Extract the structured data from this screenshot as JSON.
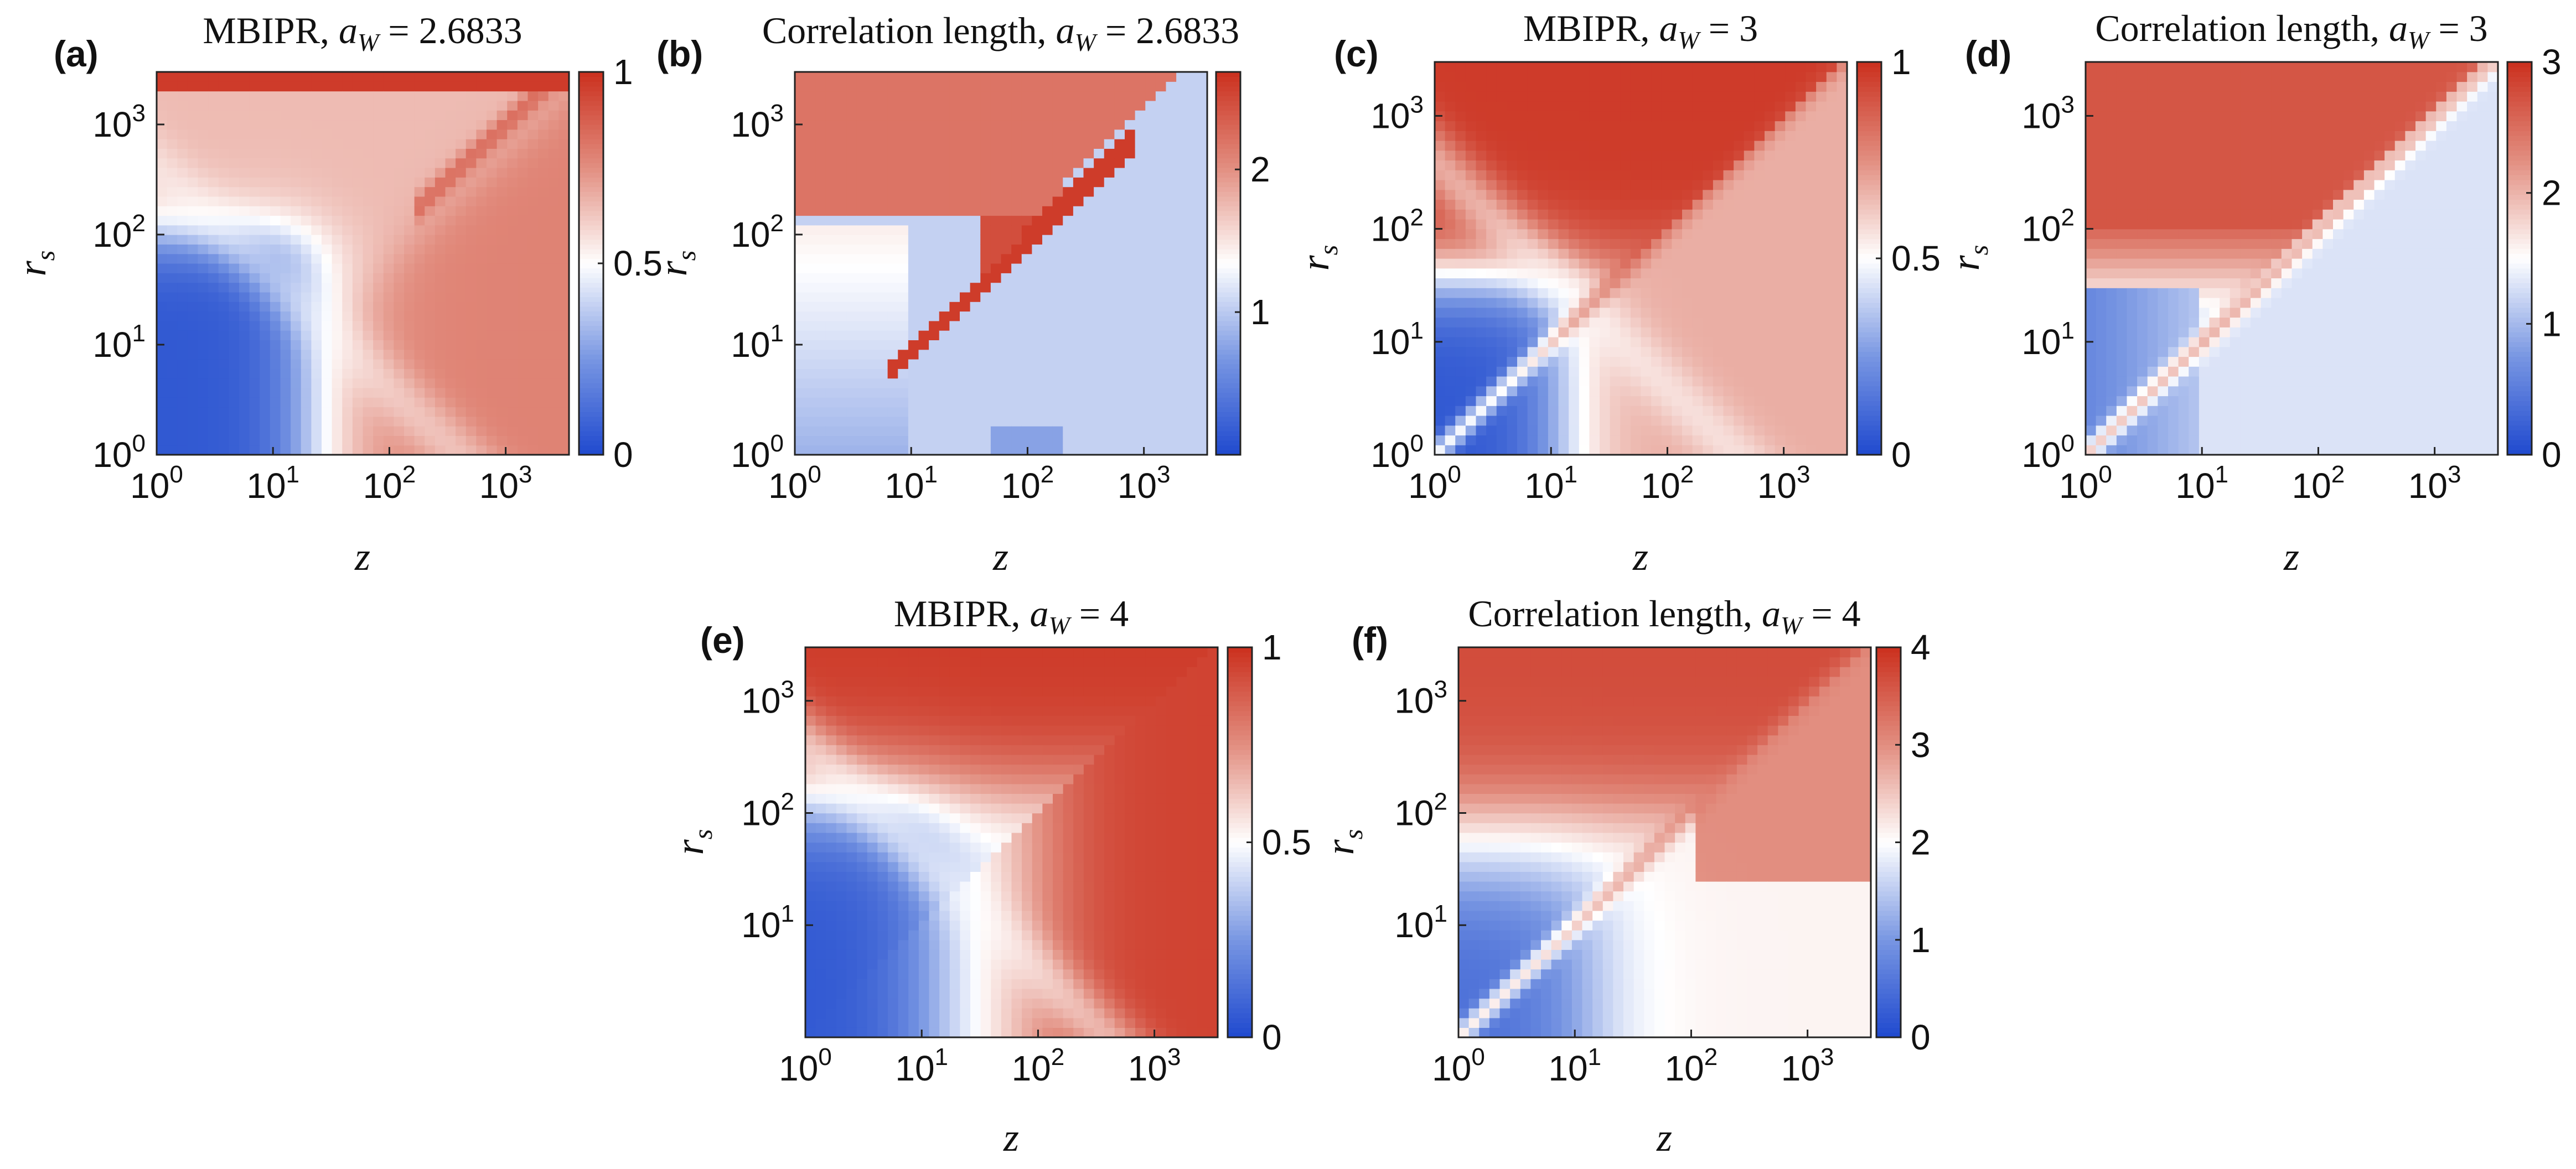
{
  "chart_data": [
    {
      "panel": "(a)",
      "type": "heatmap",
      "quantity": "MBIPR",
      "title_prefix": "MBIPR, ",
      "title_sym": "a",
      "title_sub": "W",
      "title_suffix": " = 2.6833",
      "xlabel": "z",
      "ylabel": "r",
      "ylabel_sub": "s",
      "x_scale": "log",
      "y_scale": "log",
      "xlim": [
        1,
        3500
      ],
      "ylim": [
        1,
        3000
      ],
      "x_ticks": [
        {
          "base": "10",
          "exp": "0"
        },
        {
          "base": "10",
          "exp": "1"
        },
        {
          "base": "10",
          "exp": "2"
        },
        {
          "base": "10",
          "exp": "3"
        }
      ],
      "y_ticks": [
        {
          "base": "10",
          "exp": "0"
        },
        {
          "base": "10",
          "exp": "1"
        },
        {
          "base": "10",
          "exp": "2"
        },
        {
          "base": "10",
          "exp": "3"
        }
      ],
      "colorbar": {
        "min": 0,
        "max": 1,
        "ticks": [
          "0",
          "0.5",
          "1"
        ],
        "colormap": "blue-white-red"
      },
      "regions": {
        "low_z_low_rs": 0.05,
        "high_rs": 0.65,
        "top_band": 0.97,
        "high_z_low_rs": 0.78,
        "diagonal": 0.95
      }
    },
    {
      "panel": "(b)",
      "type": "heatmap",
      "quantity": "Correlation length",
      "title_prefix": "Correlation length, ",
      "title_sym": "a",
      "title_sub": "W",
      "title_suffix": " = 2.6833",
      "xlabel": "z",
      "ylabel": "r",
      "ylabel_sub": "s",
      "x_scale": "log",
      "y_scale": "log",
      "xlim": [
        1,
        3500
      ],
      "ylim": [
        1,
        3000
      ],
      "x_ticks": [
        {
          "base": "10",
          "exp": "0"
        },
        {
          "base": "10",
          "exp": "1"
        },
        {
          "base": "10",
          "exp": "2"
        },
        {
          "base": "10",
          "exp": "3"
        }
      ],
      "y_ticks": [
        {
          "base": "10",
          "exp": "0"
        },
        {
          "base": "10",
          "exp": "1"
        },
        {
          "base": "10",
          "exp": "2"
        },
        {
          "base": "10",
          "exp": "3"
        }
      ],
      "colorbar": {
        "min": 0,
        "max": 2.6833,
        "ticks": [
          "1",
          "2"
        ],
        "colormap": "blue-white-red"
      },
      "regions": {
        "low_z_low_rs": 0.85,
        "high_rs": 2.2,
        "below_diagonal": 1.05,
        "upper_wedge": 2.6,
        "bottom_patch": 0.75
      }
    },
    {
      "panel": "(c)",
      "type": "heatmap",
      "quantity": "MBIPR",
      "title_prefix": "MBIPR, ",
      "title_sym": "a",
      "title_sub": "W",
      "title_suffix": " = 3",
      "xlabel": "z",
      "ylabel": "r",
      "ylabel_sub": "s",
      "x_scale": "log",
      "y_scale": "log",
      "xlim": [
        1,
        3500
      ],
      "ylim": [
        1,
        3000
      ],
      "x_ticks": [
        {
          "base": "10",
          "exp": "0"
        },
        {
          "base": "10",
          "exp": "1"
        },
        {
          "base": "10",
          "exp": "2"
        },
        {
          "base": "10",
          "exp": "3"
        }
      ],
      "y_ticks": [
        {
          "base": "10",
          "exp": "0"
        },
        {
          "base": "10",
          "exp": "1"
        },
        {
          "base": "10",
          "exp": "2"
        },
        {
          "base": "10",
          "exp": "3"
        }
      ],
      "colorbar": {
        "min": 0,
        "max": 1,
        "ticks": [
          "0",
          "0.5",
          "1"
        ],
        "colormap": "blue-white-red"
      },
      "regions": {
        "low_z_low_rs": 0.05,
        "high_rs": 0.97,
        "high_z_low_rs": 0.68,
        "diagonal": 0.9
      }
    },
    {
      "panel": "(d)",
      "type": "heatmap",
      "quantity": "Correlation length",
      "title_prefix": "Correlation length, ",
      "title_sym": "a",
      "title_sub": "W",
      "title_suffix": " = 3",
      "xlabel": "z",
      "ylabel": "r",
      "ylabel_sub": "s",
      "x_scale": "log",
      "y_scale": "log",
      "xlim": [
        1,
        3500
      ],
      "ylim": [
        1,
        3000
      ],
      "x_ticks": [
        {
          "base": "10",
          "exp": "0"
        },
        {
          "base": "10",
          "exp": "1"
        },
        {
          "base": "10",
          "exp": "2"
        },
        {
          "base": "10",
          "exp": "3"
        }
      ],
      "y_ticks": [
        {
          "base": "10",
          "exp": "0"
        },
        {
          "base": "10",
          "exp": "1"
        },
        {
          "base": "10",
          "exp": "2"
        },
        {
          "base": "10",
          "exp": "3"
        }
      ],
      "colorbar": {
        "min": 0,
        "max": 3,
        "ticks": [
          "0",
          "1",
          "2",
          "3"
        ],
        "colormap": "blue-white-red"
      },
      "regions": {
        "low_z_low_rs": 0.6,
        "high_rs": 2.7,
        "below_diagonal": 1.3,
        "diagonal": 2.3
      }
    },
    {
      "panel": "(e)",
      "type": "heatmap",
      "quantity": "MBIPR",
      "title_prefix": "MBIPR, ",
      "title_sym": "a",
      "title_sub": "W",
      "title_suffix": " = 4",
      "xlabel": "z",
      "ylabel": "r",
      "ylabel_sub": "s",
      "x_scale": "log",
      "y_scale": "log",
      "xlim": [
        1,
        3500
      ],
      "ylim": [
        1,
        3000
      ],
      "x_ticks": [
        {
          "base": "10",
          "exp": "0"
        },
        {
          "base": "10",
          "exp": "1"
        },
        {
          "base": "10",
          "exp": "2"
        },
        {
          "base": "10",
          "exp": "3"
        }
      ],
      "y_ticks": [
        {
          "base": "10",
          "exp": "1"
        },
        {
          "base": "10",
          "exp": "2"
        },
        {
          "base": "10",
          "exp": "3"
        }
      ],
      "colorbar": {
        "min": 0,
        "max": 1,
        "ticks": [
          "0",
          "0.5",
          "1"
        ],
        "colormap": "blue-white-red"
      },
      "regions": {
        "low_z_low_rs": 0.05,
        "high_rs": 0.97,
        "high_z_low_rs": 0.95,
        "diagonal": 0.8
      }
    },
    {
      "panel": "(f)",
      "type": "heatmap",
      "quantity": "Correlation length",
      "title_prefix": "Correlation length, ",
      "title_sym": "a",
      "title_sub": "W",
      "title_suffix": " = 4",
      "xlabel": "z",
      "ylabel": "r",
      "ylabel_sub": "s",
      "x_scale": "log",
      "y_scale": "log",
      "xlim": [
        1,
        3500
      ],
      "ylim": [
        1,
        3000
      ],
      "x_ticks": [
        {
          "base": "10",
          "exp": "0"
        },
        {
          "base": "10",
          "exp": "1"
        },
        {
          "base": "10",
          "exp": "2"
        },
        {
          "base": "10",
          "exp": "3"
        }
      ],
      "y_ticks": [
        {
          "base": "10",
          "exp": "1"
        },
        {
          "base": "10",
          "exp": "2"
        },
        {
          "base": "10",
          "exp": "3"
        }
      ],
      "colorbar": {
        "min": 0,
        "max": 4,
        "ticks": [
          "0",
          "1",
          "2",
          "3",
          "4"
        ],
        "colormap": "blue-white-red"
      },
      "regions": {
        "low_z_low_rs": 0.5,
        "high_rs": 3.7,
        "plateau_high_z": 3.0,
        "lower_right": 2.1,
        "diagonal": 3.2
      }
    }
  ]
}
